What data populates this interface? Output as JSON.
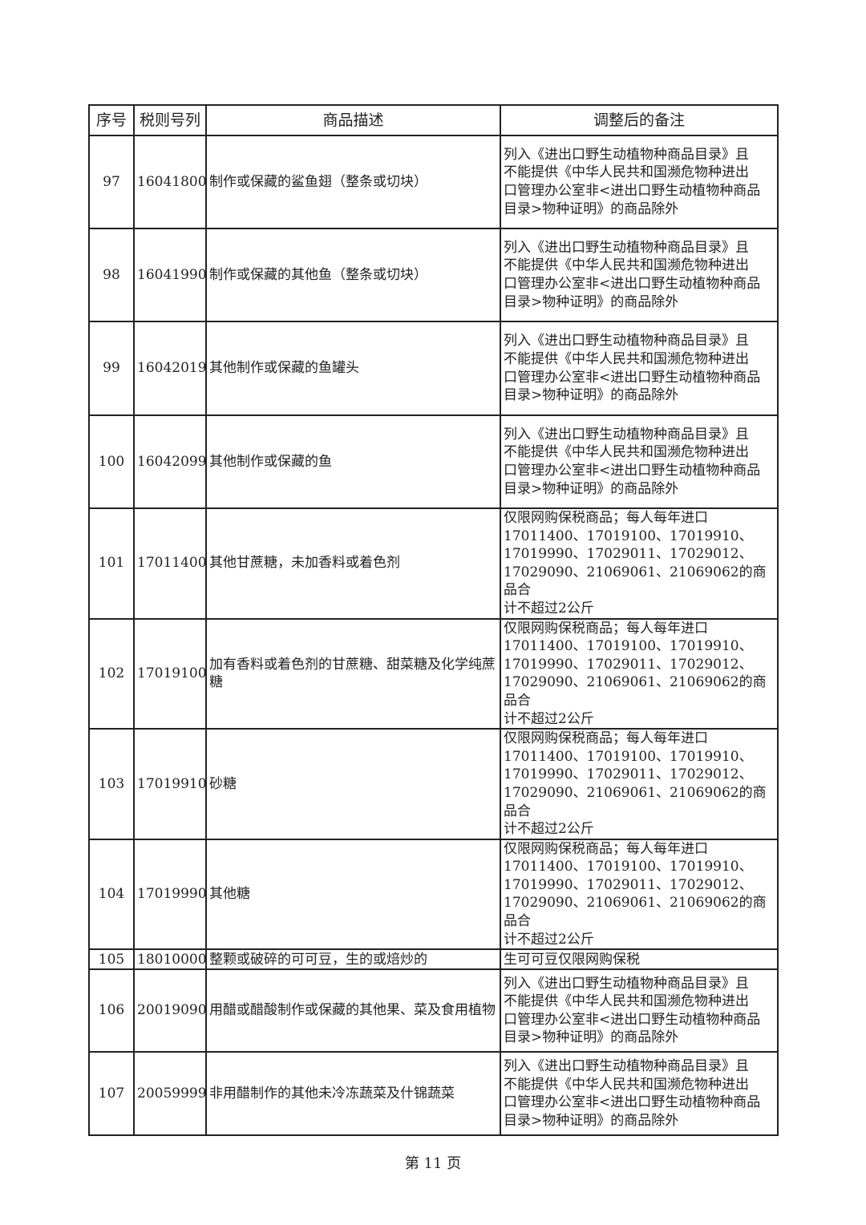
{
  "table": {
    "headers": [
      "序号",
      "税则号列",
      "商品描述",
      "调整后的备注"
    ],
    "rows": [
      {
        "no": "97",
        "code": "16041800",
        "desc": "制作或保藏的鲨鱼翅（整条或切块）",
        "remark": "列入《进出口野生动植物种商品目录》且\n不能提供《中华人民共和国濒危物种进出\n口管理办公室非<进出口野生动植物种商品\n目录>物种证明》的商品除外"
      },
      {
        "no": "98",
        "code": "16041990",
        "desc": "制作或保藏的其他鱼（整条或切块）",
        "remark": "列入《进出口野生动植物种商品目录》且\n不能提供《中华人民共和国濒危物种进出\n口管理办公室非<进出口野生动植物种商品\n目录>物种证明》的商品除外"
      },
      {
        "no": "99",
        "code": "16042019",
        "desc": "其他制作或保藏的鱼罐头",
        "remark": "列入《进出口野生动植物种商品目录》且\n不能提供《中华人民共和国濒危物种进出\n口管理办公室非<进出口野生动植物种商品\n目录>物种证明》的商品除外"
      },
      {
        "no": "100",
        "code": "16042099",
        "desc": "其他制作或保藏的鱼",
        "remark": "列入《进出口野生动植物种商品目录》且\n不能提供《中华人民共和国濒危物种进出\n口管理办公室非<进出口野生动植物种商品\n目录>物种证明》的商品除外"
      },
      {
        "no": "101",
        "code": "17011400",
        "desc": "其他甘蔗糖，未加香料或着色剂",
        "remark": "仅限网购保税商品；每人每年进口\n17011400、17019100、17019910、\n17019990、17029011、17029012、\n17029090、21069061、21069062的商品合\n计不超过2公斤"
      },
      {
        "no": "102",
        "code": "17019100",
        "desc": "加有香料或着色剂的甘蔗糖、甜菜糖及化学纯蔗糖",
        "remark": "仅限网购保税商品；每人每年进口\n17011400、17019100、17019910、\n17019990、17029011、17029012、\n17029090、21069061、21069062的商品合\n计不超过2公斤"
      },
      {
        "no": "103",
        "code": "17019910",
        "desc": "砂糖",
        "remark": "仅限网购保税商品；每人每年进口\n17011400、17019100、17019910、\n17019990、17029011、17029012、\n17029090、21069061、21069062的商品合\n计不超过2公斤"
      },
      {
        "no": "104",
        "code": "17019990",
        "desc": "其他糖",
        "remark": "仅限网购保税商品；每人每年进口\n17011400、17019100、17019910、\n17019990、17029011、17029012、\n17029090、21069061、21069062的商品合\n计不超过2公斤"
      },
      {
        "no": "105",
        "code": "18010000",
        "desc": "整颗或破碎的可可豆，生的或焙炒的",
        "remark": "生可可豆仅限网购保税"
      },
      {
        "no": "106",
        "code": "20019090",
        "desc": "用醋或醋酸制作或保藏的其他果、菜及食用植物",
        "remark": "列入《进出口野生动植物种商品目录》且\n不能提供《中华人民共和国濒危物种进出\n口管理办公室非<进出口野生动植物种商品\n目录>物种证明》的商品除外"
      },
      {
        "no": "107",
        "code": "20059999",
        "desc": "非用醋制作的其他未冷冻蔬菜及什锦蔬菜",
        "remark": "列入《进出口野生动植物种商品目录》且\n不能提供《中华人民共和国濒危物种进出\n口管理办公室非<进出口野生动植物种商品\n目录>物种证明》的商品除外"
      }
    ]
  },
  "footer": {
    "page_label": "第 11 页"
  }
}
